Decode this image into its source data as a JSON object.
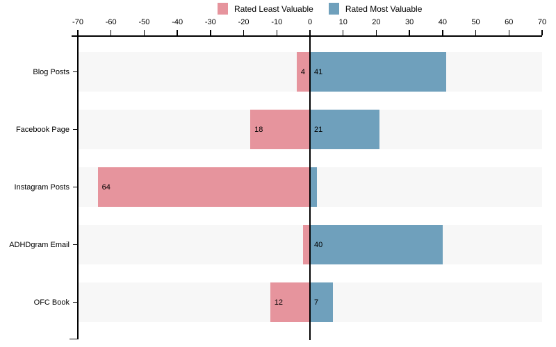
{
  "legend": {
    "items": [
      {
        "label": "Rated Least Valuable",
        "color": "#e6949d"
      },
      {
        "label": "Rated Most Valuable",
        "color": "#6fa0bc"
      }
    ]
  },
  "chart_data": {
    "type": "bar",
    "subtype": "diverging-horizontal",
    "title": "",
    "categories": [
      "Blog Posts",
      "Facebook Page",
      "Instagram Posts",
      "ADHDgram Email",
      "OFC Book"
    ],
    "series": [
      {
        "name": "Rated Least Valuable",
        "side": "negative",
        "color": "#e6949d",
        "values": [
          4,
          18,
          64,
          2,
          12
        ],
        "value_labels": [
          "4",
          "18",
          "64",
          "",
          "12"
        ]
      },
      {
        "name": "Rated Most Valuable",
        "side": "positive",
        "color": "#6fa0bc",
        "values": [
          41,
          21,
          2,
          40,
          7
        ],
        "value_labels": [
          "41",
          "21",
          "",
          "40",
          "7"
        ]
      }
    ],
    "xlim": [
      -70,
      70
    ],
    "x_ticks": [
      -70,
      -60,
      -50,
      -40,
      -30,
      -20,
      -10,
      0,
      10,
      20,
      30,
      40,
      50,
      60,
      70
    ],
    "zero_line": true,
    "grid": false,
    "band_color": "#f7f7f7",
    "legend_position": "top"
  }
}
